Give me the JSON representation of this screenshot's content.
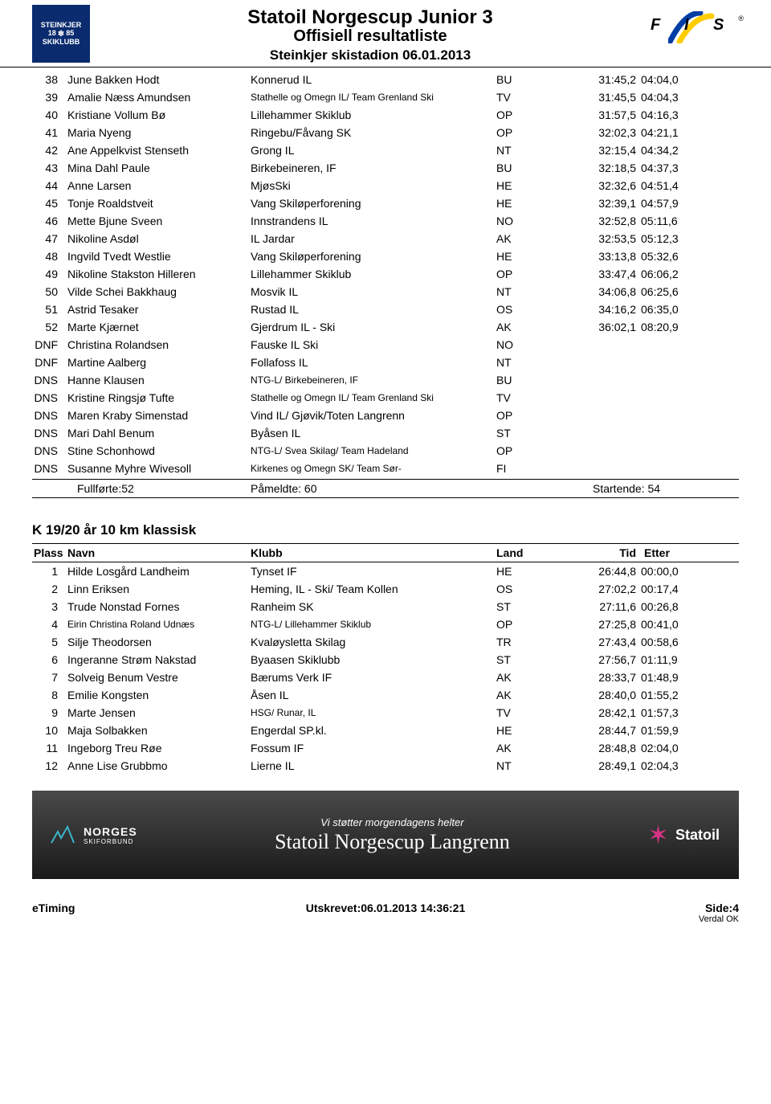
{
  "header": {
    "logo_left": {
      "top": "STEINKJER",
      "year_l": "18",
      "year_r": "85",
      "bottom": "SKIKLUBB"
    },
    "title1": "Statoil Norgescup Junior 3",
    "title2": "Offisiell resultatliste",
    "title3": "Steinkjer skistadion 06.01.2013",
    "fis": {
      "f": "F",
      "i": "I",
      "s": "S",
      "reg": "®"
    }
  },
  "table1": {
    "rows": [
      {
        "p": "38",
        "name": "June Bakken Hodt",
        "club": "Konnerud IL",
        "land": "BU",
        "tid": "31:45,2",
        "etter": "04:04,0"
      },
      {
        "p": "39",
        "name": "Amalie Næss Amundsen",
        "club": "Stathelle og Omegn IL/ Team Grenland Ski",
        "club_small": true,
        "land": "TV",
        "tid": "31:45,5",
        "etter": "04:04,3"
      },
      {
        "p": "40",
        "name": "Kristiane Vollum Bø",
        "club": "Lillehammer Skiklub",
        "land": "OP",
        "tid": "31:57,5",
        "etter": "04:16,3"
      },
      {
        "p": "41",
        "name": "Maria Nyeng",
        "club": "Ringebu/Fåvang SK",
        "land": "OP",
        "tid": "32:02,3",
        "etter": "04:21,1"
      },
      {
        "p": "42",
        "name": "Ane Appelkvist Stenseth",
        "club": "Grong IL",
        "land": "NT",
        "tid": "32:15,4",
        "etter": "04:34,2"
      },
      {
        "p": "43",
        "name": "Mina Dahl Paule",
        "club": "Birkebeineren, IF",
        "land": "BU",
        "tid": "32:18,5",
        "etter": "04:37,3"
      },
      {
        "p": "44",
        "name": "Anne Larsen",
        "club": "MjøsSki",
        "land": "HE",
        "tid": "32:32,6",
        "etter": "04:51,4"
      },
      {
        "p": "45",
        "name": "Tonje Roaldstveit",
        "club": "Vang Skiløperforening",
        "land": "HE",
        "tid": "32:39,1",
        "etter": "04:57,9"
      },
      {
        "p": "46",
        "name": "Mette Bjune Sveen",
        "club": "Innstrandens IL",
        "land": "NO",
        "tid": "32:52,8",
        "etter": "05:11,6"
      },
      {
        "p": "47",
        "name": "Nikoline Asdøl",
        "club": "IL Jardar",
        "land": "AK",
        "tid": "32:53,5",
        "etter": "05:12,3"
      },
      {
        "p": "48",
        "name": "Ingvild Tvedt Westlie",
        "club": "Vang Skiløperforening",
        "land": "HE",
        "tid": "33:13,8",
        "etter": "05:32,6"
      },
      {
        "p": "49",
        "name": "Nikoline Stakston Hilleren",
        "club": "Lillehammer Skiklub",
        "land": "OP",
        "tid": "33:47,4",
        "etter": "06:06,2"
      },
      {
        "p": "50",
        "name": "Vilde Schei Bakkhaug",
        "club": "Mosvik IL",
        "land": "NT",
        "tid": "34:06,8",
        "etter": "06:25,6"
      },
      {
        "p": "51",
        "name": "Astrid Tesaker",
        "club": "Rustad IL",
        "land": "OS",
        "tid": "34:16,2",
        "etter": "06:35,0"
      },
      {
        "p": "52",
        "name": "Marte Kjærnet",
        "club": "Gjerdrum IL - Ski",
        "land": "AK",
        "tid": "36:02,1",
        "etter": "08:20,9"
      },
      {
        "p": "DNF",
        "name": "Christina Rolandsen",
        "club": "Fauske IL Ski",
        "land": "NO",
        "tid": "",
        "etter": ""
      },
      {
        "p": "DNF",
        "name": "Martine Aalberg",
        "club": "Follafoss IL",
        "land": "NT",
        "tid": "",
        "etter": ""
      },
      {
        "p": "DNS",
        "name": "Hanne Klausen",
        "club": "NTG-L/ Birkebeineren, IF",
        "club_small": true,
        "land": "BU",
        "tid": "",
        "etter": ""
      },
      {
        "p": "DNS",
        "name": "Kristine Ringsjø Tufte",
        "club": "Stathelle og Omegn IL/ Team Grenland Ski",
        "club_small": true,
        "land": "TV",
        "tid": "",
        "etter": ""
      },
      {
        "p": "DNS",
        "name": "Maren Kraby Simenstad",
        "club": "Vind IL/ Gjøvik/Toten Langrenn",
        "land": "OP",
        "tid": "",
        "etter": ""
      },
      {
        "p": "DNS",
        "name": "Mari Dahl Benum",
        "club": "Byåsen IL",
        "land": "ST",
        "tid": "",
        "etter": ""
      },
      {
        "p": "DNS",
        "name": "Stine Schonhowd",
        "club": "NTG-L/ Svea Skilag/ Team Hadeland",
        "club_small": true,
        "land": "OP",
        "tid": "",
        "etter": ""
      },
      {
        "p": "DNS",
        "name": "Susanne Myhre Wivesoll",
        "club": "Kirkenes og Omegn SK/ Team Sør-",
        "club_small": true,
        "land": "FI",
        "tid": "",
        "etter": ""
      }
    ],
    "summary": {
      "fullforte": "Fullførte:52",
      "pameldte": "Påmeldte: 60",
      "startende": "Startende: 54"
    }
  },
  "section2": {
    "title": "K 19/20 år 10 km klassisk",
    "header": {
      "plass": "Plass",
      "navn": "Navn",
      "klubb": "Klubb",
      "land": "Land",
      "tid": "Tid",
      "etter": "Etter"
    },
    "rows": [
      {
        "p": "1",
        "name": "Hilde Losgård Landheim",
        "club": "Tynset IF",
        "land": "HE",
        "tid": "26:44,8",
        "etter": "00:00,0"
      },
      {
        "p": "2",
        "name": "Linn Eriksen",
        "club": "Heming, IL - Ski/ Team Kollen",
        "land": "OS",
        "tid": "27:02,2",
        "etter": "00:17,4"
      },
      {
        "p": "3",
        "name": "Trude Nonstad Fornes",
        "club": "Ranheim SK",
        "land": "ST",
        "tid": "27:11,6",
        "etter": "00:26,8"
      },
      {
        "p": "4",
        "name": "Eirin Christina Roland Udnæs",
        "name_small": true,
        "club": "NTG-L/ Lillehammer Skiklub",
        "club_small": true,
        "land": "OP",
        "tid": "27:25,8",
        "etter": "00:41,0"
      },
      {
        "p": "5",
        "name": "Silje Theodorsen",
        "club": "Kvaløysletta Skilag",
        "land": "TR",
        "tid": "27:43,4",
        "etter": "00:58,6"
      },
      {
        "p": "6",
        "name": "Ingeranne Strøm Nakstad",
        "club": "Byaasen Skiklubb",
        "land": "ST",
        "tid": "27:56,7",
        "etter": "01:11,9"
      },
      {
        "p": "7",
        "name": "Solveig Benum Vestre",
        "club": "Bærums Verk IF",
        "land": "AK",
        "tid": "28:33,7",
        "etter": "01:48,9"
      },
      {
        "p": "8",
        "name": "Emilie Kongsten",
        "club": "Åsen IL",
        "land": "AK",
        "tid": "28:40,0",
        "etter": "01:55,2"
      },
      {
        "p": "9",
        "name": "Marte Jensen",
        "club": "HSG/ Runar, IL",
        "club_small": true,
        "land": "TV",
        "tid": "28:42,1",
        "etter": "01:57,3"
      },
      {
        "p": "10",
        "name": "Maja Solbakken",
        "club": "Engerdal SP.kl.",
        "land": "HE",
        "tid": "28:44,7",
        "etter": "01:59,9"
      },
      {
        "p": "11",
        "name": "Ingeborg Treu Røe",
        "club": "Fossum IF",
        "land": "AK",
        "tid": "28:48,8",
        "etter": "02:04,0"
      },
      {
        "p": "12",
        "name": "Anne Lise Grubbmo",
        "club": "Lierne IL",
        "land": "NT",
        "tid": "28:49,1",
        "etter": "02:04,3"
      }
    ]
  },
  "banner": {
    "norges": "NORGES",
    "norges_sub": "SKIFORBUND",
    "tagline": "Vi støtter morgendagens helter",
    "main": "Statoil Norgescup Langrenn",
    "statoil": "Statoil"
  },
  "footer": {
    "left": "eTiming",
    "center": "Utskrevet:06.01.2013 14:36:21",
    "right": "Side:4",
    "right_sub": "Verdal OK"
  },
  "colors": {
    "logo_bg": "#0a2b6e",
    "fis_blue": "#003da5",
    "fis_yellow": "#ffcc00",
    "banner_pink": "#d63384"
  }
}
